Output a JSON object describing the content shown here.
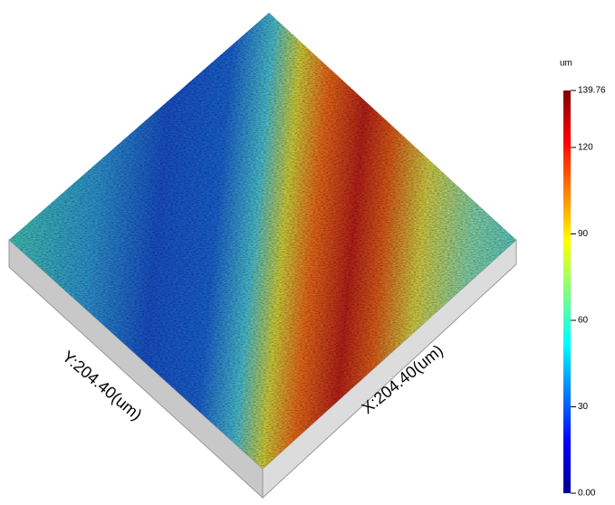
{
  "surface": {
    "x_label": "X:204.40(um)",
    "y_label": "Y:204.40(um)"
  },
  "colorbar": {
    "unit": "um",
    "range": [
      0,
      139.76
    ],
    "ticks": [
      {
        "value": 0,
        "label": "0.00"
      },
      30,
      60,
      90,
      120,
      {
        "value": 139.76,
        "label": "139.76"
      }
    ]
  }
}
